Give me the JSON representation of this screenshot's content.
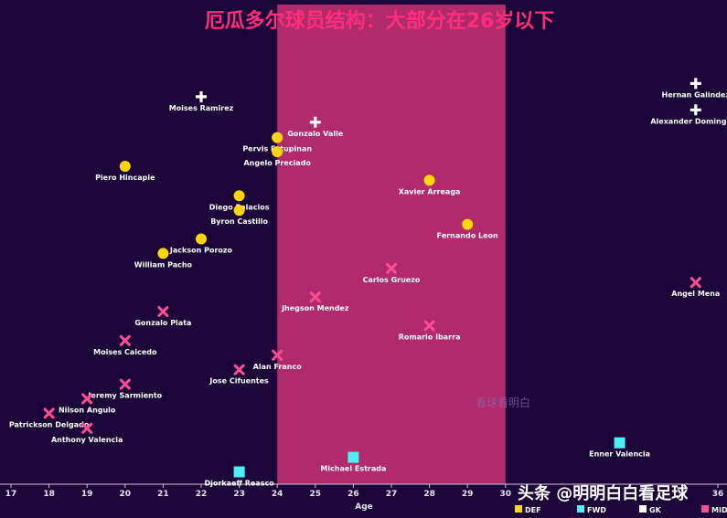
{
  "chart_data": {
    "type": "scatter",
    "title": "厄瓜多尔球员结构：大部分在26岁以下",
    "xlabel": "Age",
    "ylabel": "",
    "xlim": [
      17,
      36
    ],
    "x_ticks": [
      17,
      18,
      19,
      20,
      21,
      22,
      23,
      24,
      25,
      26,
      27,
      28,
      29,
      30,
      36
    ],
    "highlight_band": [
      24,
      30
    ],
    "grid": false,
    "legend_position": "bottom-right",
    "legend": [
      {
        "key": "DEF",
        "label": "DEF",
        "color": "#ffd60a"
      },
      {
        "key": "FWD",
        "label": "FWD",
        "color": "#4df0f5"
      },
      {
        "key": "GK",
        "label": "GK",
        "color": "#ffffff"
      },
      {
        "key": "MID",
        "label": "MID",
        "color": "#ff4d94"
      }
    ],
    "points": [
      {
        "name": "Hernan Galindez",
        "x": 35,
        "y": 0.91,
        "pos": "GK"
      },
      {
        "name": "Alexander Dominguez",
        "x": 35,
        "y": 0.85,
        "pos": "GK"
      },
      {
        "name": "Moises Ramirez",
        "x": 22,
        "y": 0.88,
        "pos": "GK"
      },
      {
        "name": "Gonzalo Valle",
        "x": 25,
        "y": 0.822,
        "pos": "GK"
      },
      {
        "name": "Pervis Estupinan",
        "x": 24,
        "y": 0.787,
        "pos": "DEF"
      },
      {
        "name": "Angelo Preciado",
        "x": 24,
        "y": 0.755,
        "pos": "DEF"
      },
      {
        "name": "Piero Hincapie",
        "x": 20,
        "y": 0.722,
        "pos": "DEF"
      },
      {
        "name": "Xavier Arreaga",
        "x": 28,
        "y": 0.69,
        "pos": "DEF"
      },
      {
        "name": "Diego Palacios",
        "x": 23,
        "y": 0.655,
        "pos": "DEF"
      },
      {
        "name": "Byron Castillo",
        "x": 23,
        "y": 0.622,
        "pos": "DEF"
      },
      {
        "name": "Fernando Leon",
        "x": 29,
        "y": 0.59,
        "pos": "DEF"
      },
      {
        "name": "Jackson Porozo",
        "x": 22,
        "y": 0.557,
        "pos": "DEF"
      },
      {
        "name": "William Pacho",
        "x": 21,
        "y": 0.524,
        "pos": "DEF"
      },
      {
        "name": "Carlos Gruezo",
        "x": 27,
        "y": 0.49,
        "pos": "MID"
      },
      {
        "name": "Angel Mena",
        "x": 35,
        "y": 0.458,
        "pos": "MID"
      },
      {
        "name": "Jhegson Mendez",
        "x": 25,
        "y": 0.425,
        "pos": "MID"
      },
      {
        "name": "Gonzalo Plata",
        "x": 21,
        "y": 0.392,
        "pos": "MID"
      },
      {
        "name": "Romario Ibarra",
        "x": 28,
        "y": 0.36,
        "pos": "MID"
      },
      {
        "name": "Moises Caicedo",
        "x": 20,
        "y": 0.326,
        "pos": "MID"
      },
      {
        "name": "Alan Franco",
        "x": 24,
        "y": 0.293,
        "pos": "MID"
      },
      {
        "name": "Jose Cifuentes",
        "x": 23,
        "y": 0.26,
        "pos": "MID"
      },
      {
        "name": "Jeremy Sarmiento",
        "x": 20,
        "y": 0.227,
        "pos": "MID"
      },
      {
        "name": "Nilson Angulo",
        "x": 19,
        "y": 0.194,
        "pos": "MID"
      },
      {
        "name": "Patrickson Delgado",
        "x": 18,
        "y": 0.161,
        "pos": "MID"
      },
      {
        "name": "Anthony Valencia",
        "x": 19,
        "y": 0.127,
        "pos": "MID"
      },
      {
        "name": "Enner Valencia",
        "x": 33,
        "y": 0.094,
        "pos": "FWD"
      },
      {
        "name": "Michael Estrada",
        "x": 26,
        "y": 0.061,
        "pos": "FWD"
      },
      {
        "name": "Djorkaeff Reasco",
        "x": 23,
        "y": 0.028,
        "pos": "FWD"
      }
    ]
  },
  "watermark_center": "看球看明白",
  "watermark_corner": "头条 @明明白白看足球"
}
